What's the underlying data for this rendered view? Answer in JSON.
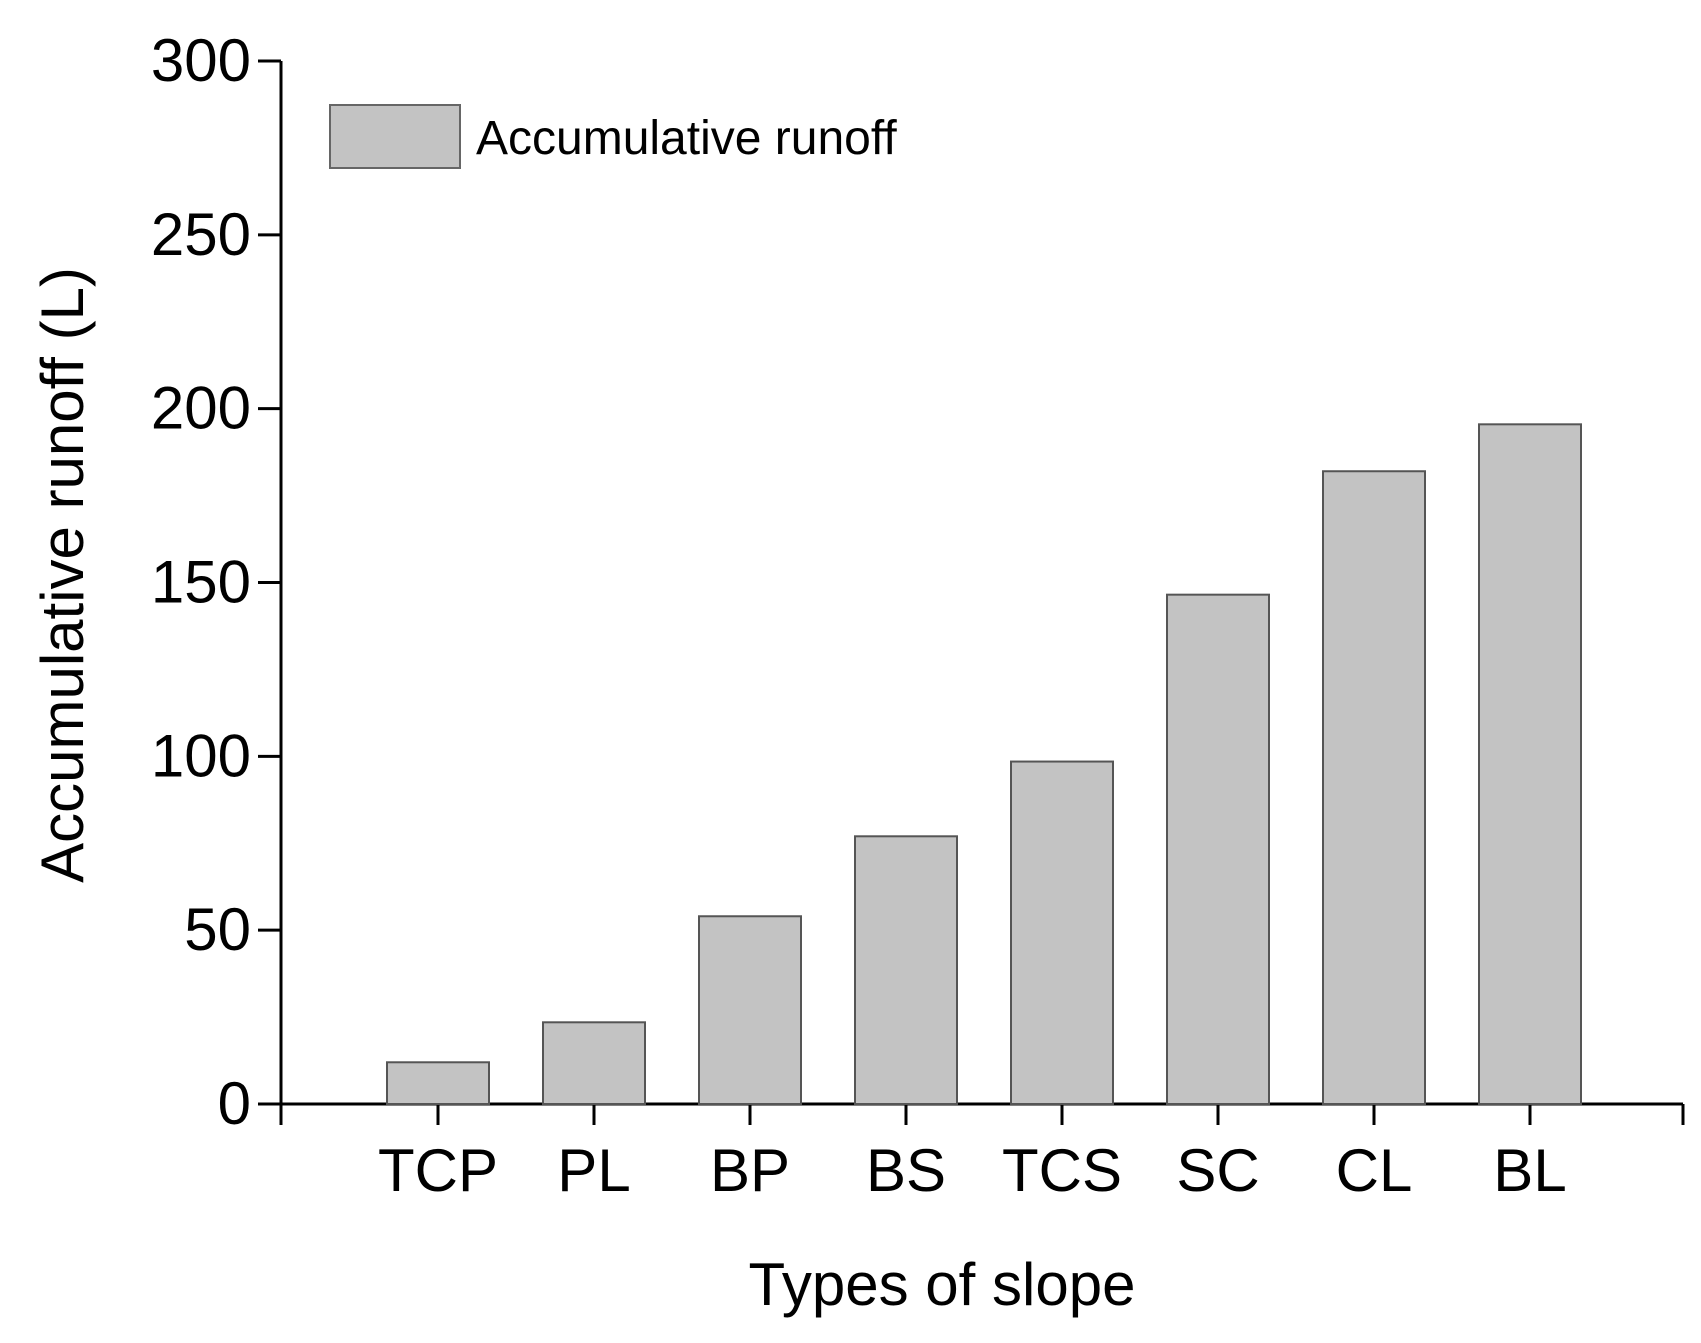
{
  "chart_data": {
    "type": "bar",
    "title": "",
    "xlabel": "Types of slope",
    "ylabel": "Accumulative runoff (L)",
    "categories": [
      "TCP",
      "PL",
      "BP",
      "BS",
      "TCS",
      "SC",
      "CL",
      "BL"
    ],
    "series": [
      {
        "name": "Accumulative runoff",
        "values": [
          12,
          23.5,
          54,
          77,
          98.5,
          146.5,
          182,
          195.5
        ],
        "color": "#c3c3c3"
      }
    ],
    "ylim": [
      0,
      300
    ],
    "yticks": [
      0,
      50,
      100,
      150,
      200,
      250,
      300
    ],
    "grid": false,
    "legend_position": "top-left"
  }
}
